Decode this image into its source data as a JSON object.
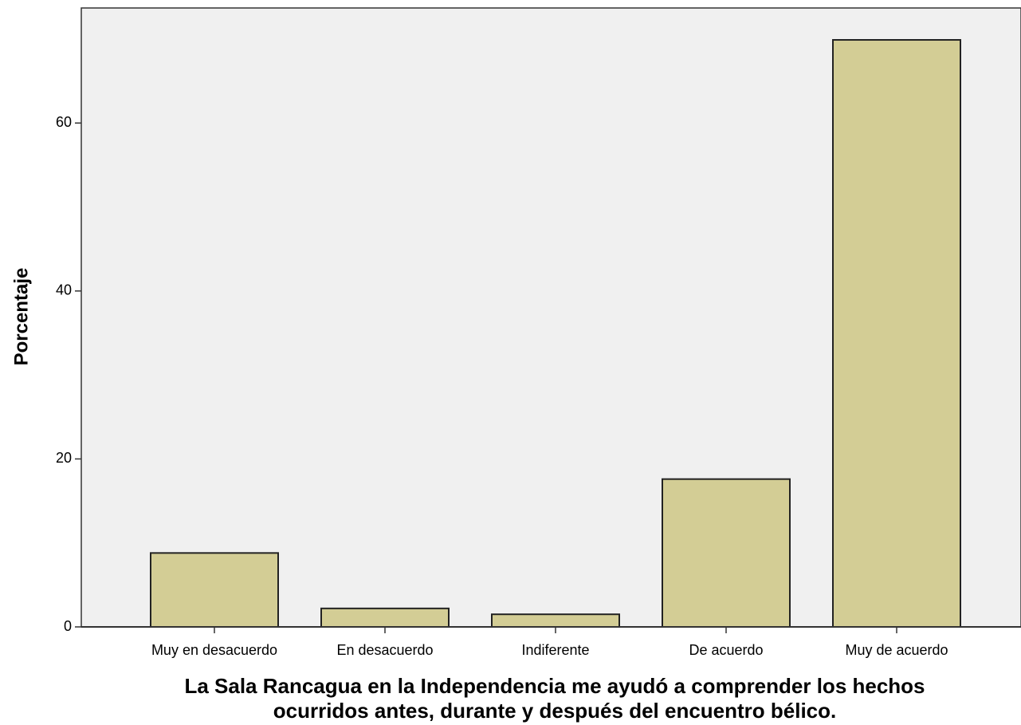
{
  "chart_data": {
    "type": "bar",
    "ylabel": "Porcentaje",
    "xlabel": [
      "La Sala Rancagua en la Independencia me ayudó a comprender los hechos",
      "ocurridos antes, durante y después del encuentro bélico."
    ],
    "categories": [
      "Muy en desacuerdo",
      "En desacuerdo",
      "Indiferente",
      "De acuerdo",
      "Muy de acuerdo"
    ],
    "values": [
      8.8,
      2.2,
      1.5,
      17.6,
      69.9
    ],
    "color": "#d3cd95",
    "ylim": [
      0,
      73.7
    ],
    "yticks": [
      0,
      20,
      40,
      60
    ]
  }
}
